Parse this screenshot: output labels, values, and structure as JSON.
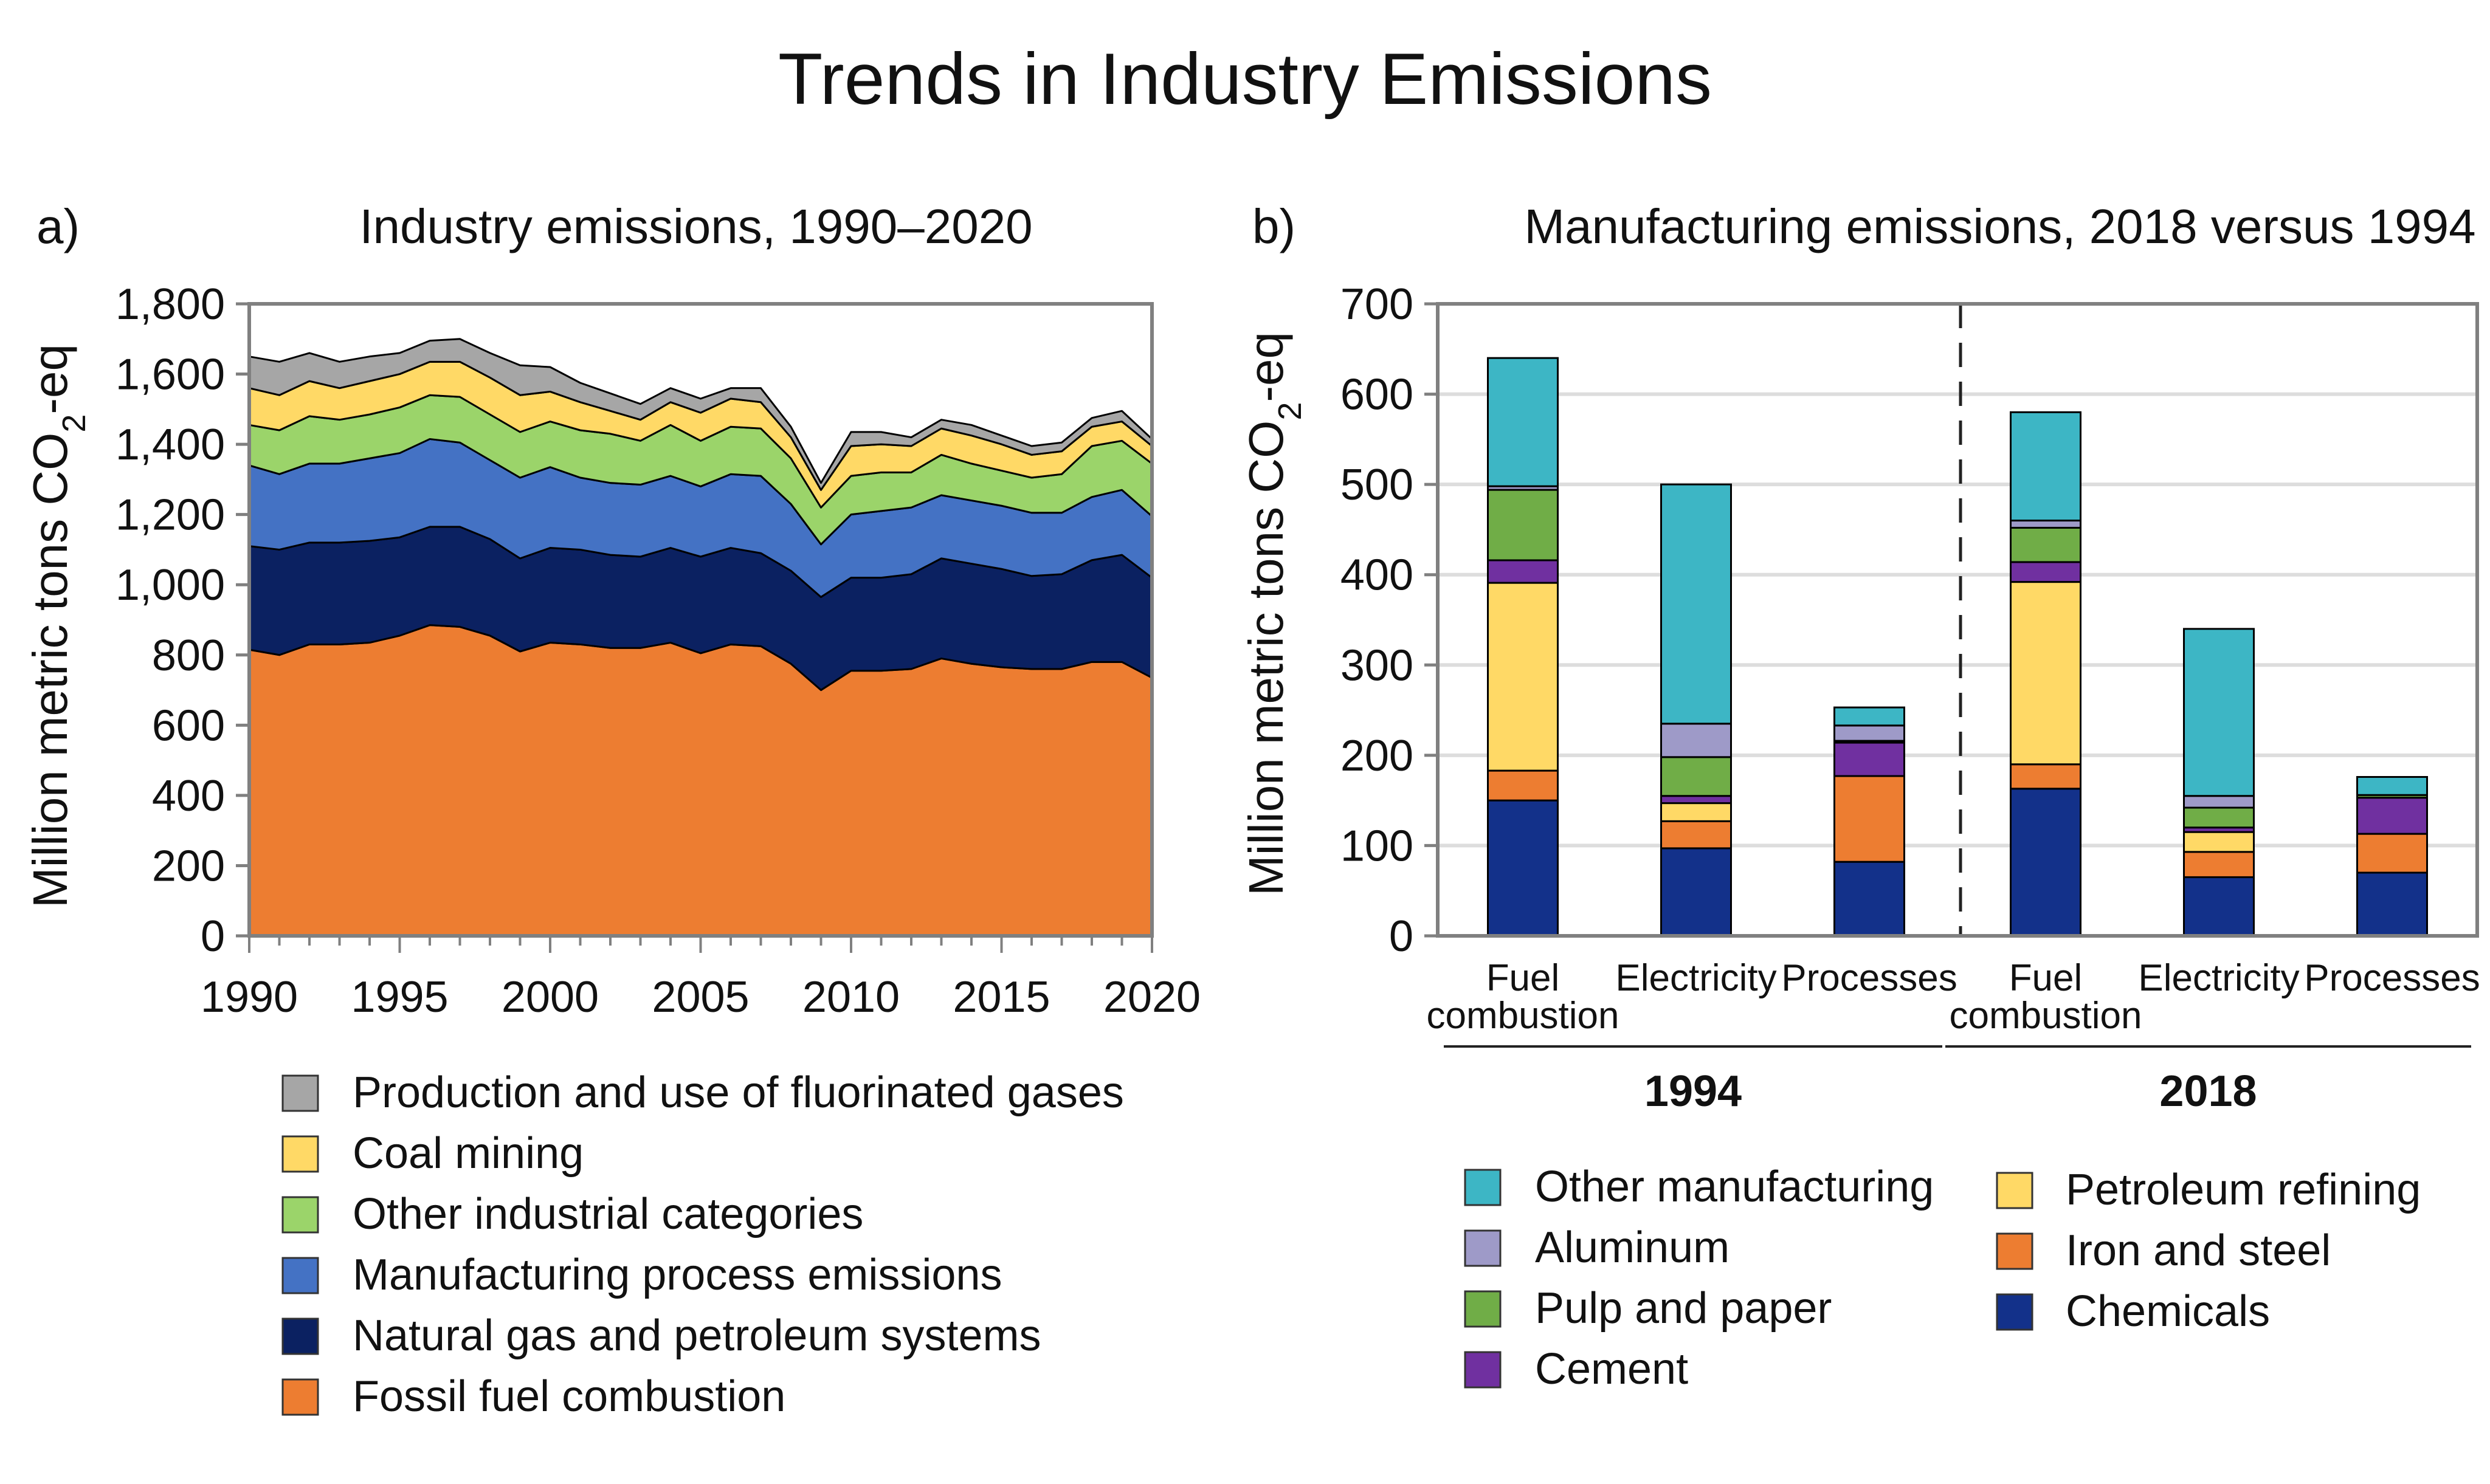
{
  "title": "Trends in Industry Emissions",
  "chart_data": [
    {
      "panel": "a)",
      "type": "area",
      "stacked": true,
      "title": "Industry emissions, 1990–2020",
      "ylabel_main": "Million metric tons CO",
      "ylabel_sub": "2",
      "ylabel_tail": "-eq",
      "xlabel": "",
      "xlim": [
        1990,
        2020
      ],
      "ylim": [
        0,
        1800
      ],
      "x_ticks": [
        1990,
        1995,
        2000,
        2005,
        2010,
        2015,
        2020
      ],
      "y_ticks": [
        "0",
        "200",
        "400",
        "600",
        "800",
        "1,000",
        "1,200",
        "1,400",
        "1,600",
        "1,800"
      ],
      "y_tick_values": [
        0,
        200,
        400,
        600,
        800,
        1000,
        1200,
        1400,
        1600,
        1800
      ],
      "x": [
        1990,
        1991,
        1992,
        1993,
        1994,
        1995,
        1996,
        1997,
        1998,
        1999,
        2000,
        2001,
        2002,
        2003,
        2004,
        2005,
        2006,
        2007,
        2008,
        2009,
        2010,
        2011,
        2012,
        2013,
        2014,
        2015,
        2016,
        2017,
        2018,
        2019,
        2020
      ],
      "series": [
        {
          "name": "Fossil fuel combustion",
          "color": "#ED7D31",
          "values": [
            815,
            800,
            830,
            830,
            835,
            855,
            885,
            880,
            855,
            810,
            835,
            830,
            820,
            820,
            835,
            805,
            830,
            825,
            775,
            700,
            755,
            755,
            760,
            790,
            775,
            765,
            760,
            760,
            780,
            780,
            735
          ]
        },
        {
          "name": "Natural gas and petroleum systems",
          "color": "#0B2161",
          "values": [
            295,
            300,
            290,
            290,
            290,
            280,
            280,
            285,
            275,
            265,
            270,
            270,
            265,
            260,
            270,
            275,
            275,
            265,
            265,
            265,
            265,
            265,
            270,
            285,
            285,
            280,
            265,
            270,
            290,
            305,
            285
          ]
        },
        {
          "name": "Manufacturing process emissions",
          "color": "#4472C4",
          "values": [
            230,
            215,
            225,
            225,
            235,
            240,
            250,
            240,
            225,
            230,
            230,
            205,
            205,
            205,
            205,
            200,
            210,
            220,
            190,
            150,
            180,
            190,
            190,
            180,
            180,
            180,
            180,
            175,
            180,
            185,
            175
          ]
        },
        {
          "name": "Other industrial categories",
          "color": "#9BD46A",
          "values": [
            115,
            125,
            135,
            125,
            125,
            130,
            125,
            130,
            130,
            130,
            130,
            135,
            140,
            125,
            145,
            130,
            135,
            135,
            130,
            105,
            110,
            110,
            100,
            115,
            105,
            100,
            100,
            110,
            145,
            140,
            150
          ]
        },
        {
          "name": "Coal mining",
          "color": "#FFD966",
          "values": [
            105,
            100,
            100,
            90,
            95,
            95,
            95,
            100,
            105,
            105,
            85,
            80,
            65,
            60,
            65,
            80,
            80,
            75,
            60,
            50,
            85,
            80,
            75,
            75,
            80,
            75,
            65,
            65,
            55,
            55,
            50
          ]
        },
        {
          "name": "Production and use of fluorinated gases",
          "color": "#A6A6A6",
          "values": [
            90,
            95,
            80,
            75,
            70,
            60,
            60,
            65,
            70,
            85,
            70,
            55,
            50,
            45,
            40,
            40,
            30,
            40,
            30,
            20,
            40,
            35,
            25,
            25,
            30,
            25,
            25,
            25,
            25,
            30,
            20
          ]
        }
      ]
    },
    {
      "panel": "b)",
      "type": "bar",
      "stacked": true,
      "title": "Manufacturing emissions, 2018 versus 1994",
      "ylabel_main": "Million metric tons CO",
      "ylabel_sub": "2",
      "ylabel_tail": "-eq",
      "ylim": [
        0,
        700
      ],
      "y_ticks": [
        "0",
        "100",
        "200",
        "300",
        "400",
        "500",
        "600",
        "700"
      ],
      "y_tick_values": [
        0,
        100,
        200,
        300,
        400,
        500,
        600,
        700
      ],
      "groups": [
        {
          "year": "1994",
          "categories": [
            [
              "Fuel",
              "combustion"
            ],
            [
              "Electricity"
            ],
            [
              "Processes"
            ]
          ]
        },
        {
          "year": "2018",
          "categories": [
            [
              "Fuel",
              "combustion"
            ],
            [
              "Electricity"
            ],
            [
              "Processes"
            ]
          ]
        }
      ],
      "series": [
        {
          "name": "Chemicals",
          "color": "#13318A",
          "values": [
            150,
            97,
            82,
            163,
            65,
            70
          ]
        },
        {
          "name": "Iron and steel",
          "color": "#ED7D31",
          "values": [
            33,
            30,
            95,
            27,
            28,
            43
          ]
        },
        {
          "name": "Petroleum refining",
          "color": "#FFD966",
          "values": [
            208,
            20,
            0,
            202,
            22,
            0
          ]
        },
        {
          "name": "Cement",
          "color": "#7030A0",
          "values": [
            25,
            8,
            37,
            22,
            5,
            40
          ]
        },
        {
          "name": "Pulp and paper",
          "color": "#70AD47",
          "values": [
            78,
            43,
            2,
            38,
            22,
            3
          ]
        },
        {
          "name": "Aluminum",
          "color": "#9E9AC8",
          "values": [
            4,
            37,
            17,
            8,
            13,
            0
          ]
        },
        {
          "name": "Other manufacturing",
          "color": "#3DB6C5",
          "values": [
            142,
            265,
            20,
            120,
            185,
            20
          ]
        }
      ],
      "legend_col1": [
        "Other manufacturing",
        "Aluminum",
        "Pulp and paper",
        "Cement"
      ],
      "legend_col2": [
        "Petroleum refining",
        "Iron and steel",
        "Chemicals"
      ]
    }
  ]
}
